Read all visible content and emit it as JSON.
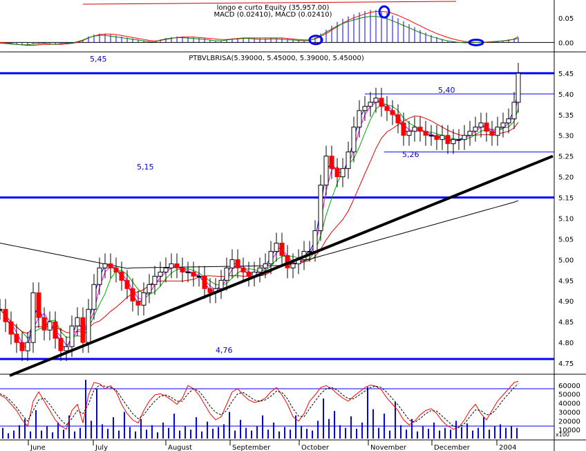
{
  "chart_data": [
    {
      "type": "bar",
      "panel": "macd",
      "title_lines": [
        "longo e curto Equity (35,957.00)",
        "MACD (0.02410), MACD (0.02410)"
      ],
      "y_ticks": [
        "0.05",
        "0.00"
      ],
      "ylim": [
        -0.015,
        0.075
      ],
      "x": [
        0,
        8,
        16,
        24,
        32,
        40,
        48,
        56,
        64,
        72,
        80,
        88,
        96,
        104,
        112,
        120,
        128,
        136,
        144,
        152,
        160,
        168,
        176,
        184,
        192,
        200,
        208,
        216,
        224,
        232,
        240,
        248,
        256,
        264,
        272,
        280,
        288,
        296,
        304,
        312,
        320,
        328,
        336,
        344,
        352,
        360,
        368,
        376,
        384,
        392,
        400,
        408,
        416,
        424,
        432,
        440,
        448,
        456,
        464,
        472,
        480,
        488,
        496,
        504,
        512,
        520,
        528,
        536,
        544,
        552,
        560,
        568,
        576,
        584,
        592,
        600,
        608,
        616,
        624,
        632,
        640,
        648,
        656,
        664,
        672,
        680,
        688,
        696,
        704,
        712,
        720,
        728,
        736,
        744,
        750
      ],
      "series": [
        {
          "name": "histogram",
          "values": [
            -0.002,
            -0.003,
            -0.004,
            -0.005,
            -0.006,
            -0.006,
            -0.004,
            -0.003,
            -0.002,
            -0.004,
            -0.005,
            -0.003,
            -0.002,
            -0.002,
            0.002,
            0.006,
            0.012,
            0.016,
            0.018,
            0.018,
            0.016,
            0.014,
            0.012,
            0.01,
            0.008,
            0.006,
            0.004,
            0.002,
            0.001,
            0.006,
            0.009,
            0.011,
            0.012,
            0.012,
            0.011,
            0.01,
            0.009,
            0.008,
            0.006,
            0.004,
            0.004,
            0.006,
            0.008,
            0.009,
            0.01,
            0.01,
            0.009,
            0.008,
            0.008,
            0.009,
            0.009,
            0.008,
            0.007,
            0.006,
            0.005,
            0.004,
            0.005,
            0.01,
            0.018,
            0.026,
            0.034,
            0.042,
            0.048,
            0.053,
            0.057,
            0.061,
            0.064,
            0.066,
            0.066,
            0.064,
            0.06,
            0.055,
            0.049,
            0.043,
            0.037,
            0.031,
            0.025,
            0.02,
            0.015,
            0.011,
            0.007,
            0.004,
            0.002,
            0.0,
            -0.001,
            -0.001,
            0.0,
            0.0,
            0.001,
            0.002,
            0.003,
            0.004,
            0.006,
            0.008,
            0.01
          ]
        },
        {
          "name": "signal",
          "values": [
            0.0,
            -0.001,
            -0.002,
            -0.004,
            -0.005,
            -0.006,
            -0.006,
            -0.005,
            -0.004,
            -0.004,
            -0.004,
            -0.004,
            -0.003,
            -0.002,
            0.0,
            0.004,
            0.009,
            0.013,
            0.016,
            0.017,
            0.017,
            0.016,
            0.014,
            0.012,
            0.01,
            0.008,
            0.006,
            0.004,
            0.003,
            0.004,
            0.006,
            0.008,
            0.01,
            0.011,
            0.011,
            0.011,
            0.01,
            0.009,
            0.008,
            0.007,
            0.006,
            0.006,
            0.007,
            0.008,
            0.009,
            0.009,
            0.009,
            0.009,
            0.009,
            0.009,
            0.009,
            0.009,
            0.008,
            0.007,
            0.006,
            0.005,
            0.005,
            0.007,
            0.012,
            0.018,
            0.025,
            0.032,
            0.039,
            0.045,
            0.05,
            0.054,
            0.058,
            0.061,
            0.063,
            0.063,
            0.062,
            0.059,
            0.055,
            0.05,
            0.045,
            0.039,
            0.034,
            0.028,
            0.023,
            0.018,
            0.014,
            0.01,
            0.007,
            0.004,
            0.002,
            0.001,
            0.0,
            0.0,
            0.0,
            0.001,
            0.002,
            0.003,
            0.004,
            0.007,
            0.012
          ]
        }
      ],
      "colors": {
        "histogram": "#0000ff",
        "signal": "#ff0000",
        "macd": "#008000"
      }
    },
    {
      "type": "candlestick",
      "panel": "price",
      "title": "PTBVLBRISA(5.39000, 5.45000, 5.39000, 5.45000)",
      "y_ticks": [
        "5.45",
        "5.40",
        "5.35",
        "5.30",
        "5.25",
        "5.20",
        "5.15",
        "5.10",
        "5.05",
        "5.00",
        "4.95",
        "4.90",
        "4.85",
        "4.80",
        "4.75"
      ],
      "ylim": [
        4.725,
        5.5
      ],
      "x_labels": [
        "June",
        "July",
        "August",
        "September",
        "October",
        "November",
        "December",
        "2004"
      ],
      "levels": [
        {
          "value": 5.45,
          "label": "5,45"
        },
        {
          "value": 5.15,
          "label": "5,15"
        },
        {
          "value": 4.76,
          "label": "4,76"
        },
        {
          "value": 5.4,
          "label": "5,40"
        },
        {
          "value": 5.26,
          "label": "5,26"
        }
      ],
      "trendline": [
        [
          0,
          4.72
        ],
        [
          800,
          5.25
        ]
      ],
      "close_x": [
        0,
        8,
        16,
        24,
        32,
        40,
        48,
        56,
        64,
        72,
        80,
        88,
        96,
        104,
        112,
        120,
        128,
        136,
        144,
        152,
        160,
        168,
        176,
        184,
        192,
        200,
        208,
        216,
        224,
        232,
        240,
        248,
        256,
        264,
        272,
        280,
        288,
        296,
        304,
        312,
        320,
        328,
        336,
        344,
        352,
        360,
        368,
        376,
        384,
        392,
        400,
        408,
        416,
        424,
        432,
        440,
        448,
        456,
        464,
        472,
        480,
        488,
        496,
        504,
        512,
        520,
        528,
        536,
        544,
        552,
        560,
        568,
        576,
        584,
        592,
        600,
        608,
        616,
        624,
        632,
        640,
        648,
        656,
        664,
        672,
        680,
        688,
        696,
        704,
        712,
        720,
        728,
        736,
        744,
        750
      ],
      "close": [
        4.88,
        4.85,
        4.82,
        4.8,
        4.78,
        4.8,
        4.92,
        4.86,
        4.83,
        4.85,
        4.81,
        4.78,
        4.79,
        4.84,
        4.86,
        4.8,
        4.88,
        4.94,
        4.98,
        4.99,
        4.98,
        4.97,
        4.95,
        4.93,
        4.9,
        4.89,
        4.92,
        4.94,
        4.96,
        4.97,
        4.98,
        4.99,
        4.98,
        4.97,
        4.97,
        4.96,
        4.96,
        4.93,
        4.92,
        4.93,
        4.95,
        4.98,
        5.0,
        4.98,
        4.97,
        4.96,
        4.97,
        4.98,
        4.99,
        5.02,
        5.04,
        5.01,
        4.98,
        4.99,
        5.0,
        5.02,
        5.02,
        5.07,
        5.18,
        5.25,
        5.22,
        5.2,
        5.22,
        5.26,
        5.32,
        5.36,
        5.37,
        5.38,
        5.39,
        5.37,
        5.36,
        5.35,
        5.33,
        5.3,
        5.31,
        5.32,
        5.31,
        5.3,
        5.3,
        5.29,
        5.3,
        5.28,
        5.29,
        5.29,
        5.3,
        5.31,
        5.32,
        5.33,
        5.31,
        5.3,
        5.32,
        5.33,
        5.34,
        5.38,
        5.45
      ],
      "moving_averages": {
        "blue": 5,
        "magenta": 10,
        "green": 21,
        "red": 50,
        "black": 200
      }
    },
    {
      "type": "line",
      "panel": "stochastic_volume",
      "y_ticks": [
        "60000",
        "50000",
        "40000",
        "30000",
        "20000",
        "10000"
      ],
      "unit_label": "x100",
      "hlines": [
        80,
        20
      ],
      "stoch_x": [
        0,
        8,
        16,
        24,
        32,
        40,
        48,
        56,
        64,
        72,
        80,
        88,
        96,
        104,
        112,
        120,
        128,
        136,
        144,
        152,
        160,
        168,
        176,
        184,
        192,
        200,
        208,
        216,
        224,
        232,
        240,
        248,
        256,
        264,
        272,
        280,
        288,
        296,
        304,
        312,
        320,
        328,
        336,
        344,
        352,
        360,
        368,
        376,
        384,
        392,
        400,
        408,
        416,
        424,
        432,
        440,
        448,
        456,
        464,
        472,
        480,
        488,
        496,
        504,
        512,
        520,
        528,
        536,
        544,
        552,
        560,
        568,
        576,
        584,
        592,
        600,
        608,
        616,
        624,
        632,
        640,
        648,
        656,
        664,
        672,
        680,
        688,
        696,
        704,
        712,
        720,
        728,
        736,
        744,
        750
      ],
      "series": [
        {
          "name": "k",
          "values": [
            70,
            65,
            55,
            45,
            30,
            20,
            60,
            75,
            60,
            45,
            30,
            20,
            15,
            45,
            55,
            25,
            70,
            90,
            88,
            80,
            85,
            75,
            55,
            40,
            30,
            25,
            45,
            60,
            70,
            72,
            68,
            62,
            55,
            65,
            85,
            80,
            70,
            55,
            40,
            30,
            35,
            55,
            75,
            80,
            70,
            62,
            58,
            60,
            65,
            75,
            82,
            70,
            55,
            35,
            28,
            40,
            60,
            70,
            82,
            85,
            80,
            72,
            65,
            60,
            68,
            75,
            82,
            86,
            84,
            78,
            65,
            55,
            45,
            30,
            22,
            28,
            38,
            45,
            48,
            40,
            28,
            20,
            15,
            18,
            30,
            45,
            55,
            40,
            30,
            45,
            60,
            70,
            80,
            90,
            92
          ]
        },
        {
          "name": "d",
          "values": [
            72,
            68,
            60,
            50,
            38,
            28,
            45,
            62,
            65,
            55,
            42,
            30,
            22,
            32,
            45,
            40,
            55,
            78,
            86,
            84,
            82,
            78,
            65,
            52,
            40,
            32,
            38,
            50,
            60,
            68,
            70,
            66,
            60,
            60,
            72,
            80,
            76,
            65,
            52,
            42,
            38,
            45,
            60,
            72,
            74,
            68,
            62,
            60,
            62,
            68,
            76,
            74,
            64,
            48,
            36,
            35,
            48,
            60,
            72,
            80,
            82,
            78,
            70,
            64,
            64,
            70,
            76,
            82,
            84,
            82,
            74,
            64,
            54,
            42,
            30,
            26,
            32,
            40,
            45,
            44,
            36,
            28,
            20,
            18,
            24,
            35,
            46,
            45,
            38,
            40,
            50,
            62,
            72,
            82,
            88
          ]
        }
      ],
      "volume_x": [
        4,
        12,
        20,
        28,
        36,
        44,
        52,
        60,
        68,
        76,
        84,
        92,
        100,
        108,
        116,
        124,
        132,
        140,
        148,
        156,
        164,
        172,
        180,
        188,
        196,
        204,
        212,
        220,
        228,
        236,
        244,
        252,
        260,
        268,
        276,
        284,
        292,
        300,
        308,
        316,
        324,
        332,
        340,
        348,
        356,
        364,
        372,
        380,
        388,
        396,
        404,
        412,
        420,
        428,
        436,
        444,
        452,
        460,
        468,
        476,
        484,
        492,
        500,
        508,
        516,
        524,
        532,
        540,
        548,
        556,
        564,
        572,
        580,
        588,
        596,
        604,
        612,
        620,
        628,
        636,
        644,
        652,
        660,
        668,
        676,
        684,
        692,
        700,
        708,
        716,
        724,
        732,
        740,
        748
      ],
      "volume": [
        12000,
        6000,
        9000,
        15000,
        22000,
        8000,
        32000,
        9000,
        14000,
        7000,
        18000,
        10000,
        26000,
        8000,
        12000,
        66000,
        20000,
        56000,
        16000,
        11000,
        24000,
        9000,
        30000,
        13000,
        8000,
        22000,
        10000,
        15000,
        7000,
        18000,
        12000,
        28000,
        9000,
        14000,
        10000,
        24000,
        8000,
        19000,
        11000,
        13000,
        16000,
        30000,
        9000,
        21000,
        12000,
        9000,
        14000,
        26000,
        10000,
        18000,
        8000,
        13000,
        10000,
        26000,
        14000,
        11000,
        9000,
        20000,
        45000,
        22000,
        31000,
        15000,
        12000,
        25000,
        11000,
        18000,
        58000,
        33000,
        12000,
        28000,
        9000,
        41000,
        15000,
        10000,
        22000,
        8000,
        14000,
        11000,
        18000,
        9000,
        12000,
        10000,
        20000,
        13000,
        17000,
        9000,
        12000,
        24000,
        10000,
        14000,
        16000,
        12000,
        14000,
        12000
      ],
      "colors": {
        "k": "#ff0000",
        "d": "#000000",
        "volume": "#0000ff"
      }
    }
  ]
}
